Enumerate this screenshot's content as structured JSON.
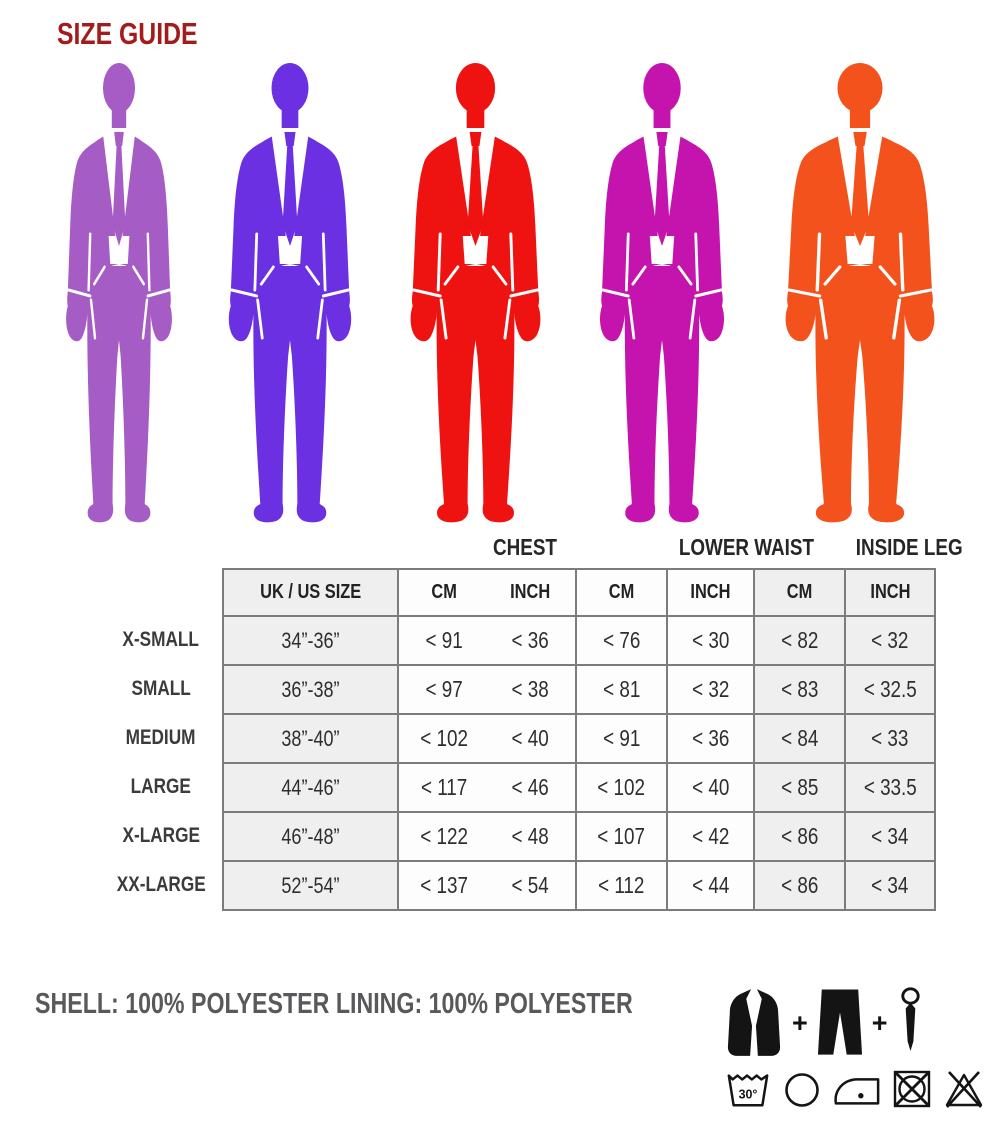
{
  "title": "SIZE GUIDE",
  "colors": {
    "title_red": "#a31c1c",
    "table_border": "#7c7c7c",
    "cell_gray": "#efefef",
    "label_text": "#3b3b3b"
  },
  "figures": [
    {
      "name": "suit-figure-1",
      "color": "#a55cc5"
    },
    {
      "name": "suit-figure-2",
      "color": "#6a30e1"
    },
    {
      "name": "suit-figure-3",
      "color": "#ee1311"
    },
    {
      "name": "suit-figure-4",
      "color": "#c513ae"
    },
    {
      "name": "suit-figure-5",
      "color": "#f4521c"
    }
  ],
  "chart_data": {
    "type": "table",
    "title": "SIZE GUIDE",
    "group_headers": [
      "CHEST",
      "LOWER WAIST",
      "INSIDE LEG"
    ],
    "columns": [
      "UK / US SIZE",
      "CM",
      "INCH",
      "CM",
      "INCH",
      "CM",
      "INCH"
    ],
    "rows": [
      {
        "label": "X-SMALL",
        "uk_us": "34”-36”",
        "chest_cm": "< 91",
        "chest_inch": "< 36",
        "waist_cm": "< 76",
        "waist_inch": "< 30",
        "leg_cm": "< 82",
        "leg_inch": "< 32"
      },
      {
        "label": "SMALL",
        "uk_us": "36”-38”",
        "chest_cm": "< 97",
        "chest_inch": "< 38",
        "waist_cm": "< 81",
        "waist_inch": "< 32",
        "leg_cm": "< 83",
        "leg_inch": "< 32.5"
      },
      {
        "label": "MEDIUM",
        "uk_us": "38”-40”",
        "chest_cm": "< 102",
        "chest_inch": "< 40",
        "waist_cm": "< 91",
        "waist_inch": "< 36",
        "leg_cm": "< 84",
        "leg_inch": "< 33"
      },
      {
        "label": "LARGE",
        "uk_us": "44”-46”",
        "chest_cm": "< 117",
        "chest_inch": "< 46",
        "waist_cm": "< 102",
        "waist_inch": "< 40",
        "leg_cm": "< 85",
        "leg_inch": "< 33.5"
      },
      {
        "label": "X-LARGE",
        "uk_us": "46”-48”",
        "chest_cm": "< 122",
        "chest_inch": "< 48",
        "waist_cm": "< 107",
        "waist_inch": "< 42",
        "leg_cm": "< 86",
        "leg_inch": "< 34"
      },
      {
        "label": "XX-LARGE",
        "uk_us": "52”-54”",
        "chest_cm": "< 137",
        "chest_inch": "< 54",
        "waist_cm": "< 112",
        "waist_inch": "< 44",
        "leg_cm": "< 86",
        "leg_inch": "< 34"
      }
    ]
  },
  "footer": {
    "materials": "SHELL: 100% POLYESTER LINING: 100% POLYESTER",
    "plus": "+",
    "wash_temp": "30°"
  },
  "care_icons": {
    "garments": [
      "jacket-icon",
      "plus",
      "trousers-icon",
      "plus",
      "tie-icon"
    ],
    "wash": [
      "wash-30-icon",
      "dry-clean-circle-icon",
      "iron-one-dot-icon",
      "do-not-tumble-dry-icon",
      "do-not-bleach-icon"
    ]
  }
}
